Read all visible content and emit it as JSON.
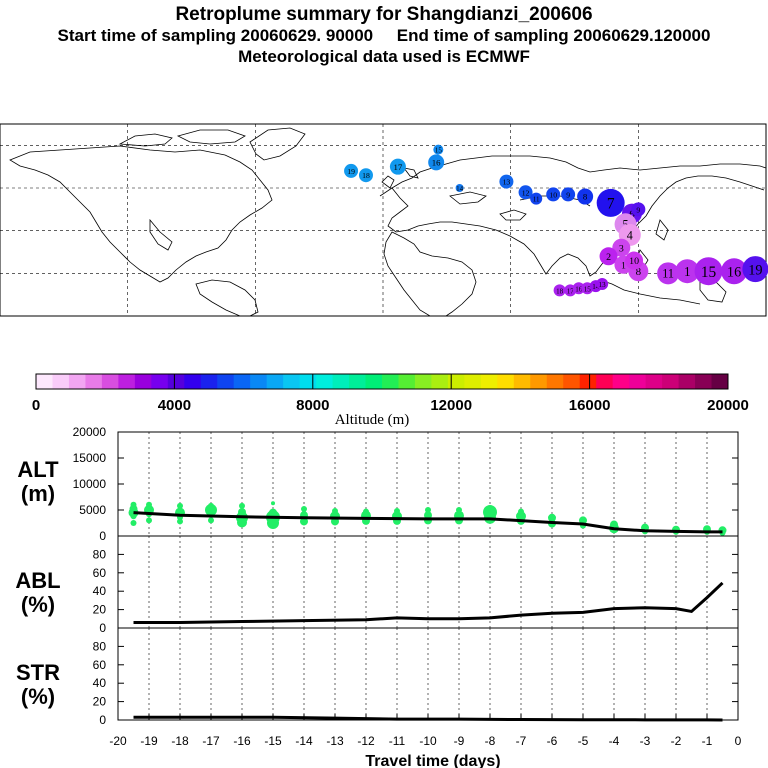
{
  "header": {
    "title": "Retroplume summary for Shangdianzi_200606",
    "subtitle": "Start time of sampling 20060629. 90000     End time of sampling 20060629.120000",
    "meteo": "Meteorological data used is ECMWF"
  },
  "colors": {
    "alt_points": "#22ee66",
    "line": "#000000"
  },
  "colorbar": {
    "title": "Altitude (m)",
    "ticks": [
      "0",
      "4000",
      "8000",
      "12000",
      "16000",
      "20000"
    ],
    "colors": [
      "#fde8fd",
      "#f9ccf9",
      "#f2a6f2",
      "#e87be8",
      "#d84ee0",
      "#bd1fe0",
      "#9900dd",
      "#7700ee",
      "#5500dd",
      "#3300ee",
      "#1a22ee",
      "#0f44f0",
      "#0a66f5",
      "#0a88f5",
      "#0aa8f5",
      "#0ac6f2",
      "#00ddee",
      "#00eedd",
      "#00eebb",
      "#00ee99",
      "#00ee77",
      "#22ee55",
      "#55ee33",
      "#88ee22",
      "#aaee11",
      "#ccee00",
      "#ddee00",
      "#eeee00",
      "#ffdd00",
      "#ffbb00",
      "#ff9900",
      "#ff7700",
      "#ff5500",
      "#ff2200",
      "#ff0055",
      "#ff0088",
      "#ee0099",
      "#dd0088",
      "#cc0077",
      "#aa0066",
      "#880055",
      "#660044"
    ]
  },
  "map": {
    "points": [
      {
        "label": "19",
        "lon": -15,
        "lat": 58,
        "r": 7,
        "color": "#1199ee"
      },
      {
        "label": "18",
        "lon": -8,
        "lat": 56,
        "r": 7,
        "color": "#1199ee"
      },
      {
        "label": "17",
        "lon": 7,
        "lat": 60,
        "r": 8,
        "color": "#1199ee"
      },
      {
        "label": "16",
        "lon": 25,
        "lat": 62,
        "r": 8,
        "color": "#1188ee"
      },
      {
        "label": "15",
        "lon": 26,
        "lat": 68,
        "r": 5,
        "color": "#1188ee"
      },
      {
        "label": "14",
        "lon": 36,
        "lat": 50,
        "r": 4,
        "color": "#1177ee"
      },
      {
        "label": "13",
        "lon": 58,
        "lat": 53,
        "r": 7,
        "color": "#1166ee"
      },
      {
        "label": "12",
        "lon": 67,
        "lat": 48,
        "r": 7,
        "color": "#1155ee"
      },
      {
        "label": "11",
        "lon": 72,
        "lat": 45,
        "r": 6,
        "color": "#1144ee"
      },
      {
        "label": "10",
        "lon": 80,
        "lat": 47,
        "r": 7,
        "color": "#1144ee"
      },
      {
        "label": "9",
        "lon": 87,
        "lat": 47,
        "r": 7,
        "color": "#1144ee"
      },
      {
        "label": "8",
        "lon": 95,
        "lat": 46,
        "r": 8,
        "color": "#1133ee"
      },
      {
        "label": "7",
        "lon": 107,
        "lat": 43,
        "r": 14,
        "color": "#2211ee"
      },
      {
        "label": "6",
        "lon": 117,
        "lat": 38,
        "r": 10,
        "color": "#6611ee"
      },
      {
        "label": "5",
        "lon": 114,
        "lat": 33,
        "r": 11,
        "color": "#dd88ee"
      },
      {
        "label": "4",
        "lon": 116,
        "lat": 28,
        "r": 11,
        "color": "#ee99ee"
      },
      {
        "label": "3",
        "lon": 112,
        "lat": 22,
        "r": 9,
        "color": "#cc44ee"
      },
      {
        "label": "2",
        "lon": 106,
        "lat": 18,
        "r": 9,
        "color": "#bb22ee"
      },
      {
        "label": "1",
        "lon": 113,
        "lat": 14,
        "r": 9,
        "color": "#cc44ee"
      },
      {
        "label": "8",
        "lon": 120,
        "lat": 11,
        "r": 10,
        "color": "#cc44ee"
      },
      {
        "label": "10",
        "lon": 118,
        "lat": 16,
        "r": 9,
        "color": "#cc33ee"
      },
      {
        "label": "11",
        "lon": 134,
        "lat": 10,
        "r": 11,
        "color": "#bb33ee"
      },
      {
        "label": "1",
        "lon": 143,
        "lat": 11,
        "r": 12,
        "color": "#bb33ee"
      },
      {
        "label": "15",
        "lon": 153,
        "lat": 11,
        "r": 14,
        "color": "#aa22ee"
      },
      {
        "label": "16",
        "lon": 165,
        "lat": 11,
        "r": 13,
        "color": "#aa22ee"
      },
      {
        "label": "19",
        "lon": 175,
        "lat": 12,
        "r": 13,
        "color": "#5511ee"
      },
      {
        "label": "18",
        "lon": 83,
        "lat": 2,
        "r": 6,
        "color": "#aa22ee"
      },
      {
        "label": "17",
        "lon": 88,
        "lat": 2,
        "r": 6,
        "color": "#aa22ee"
      },
      {
        "label": "16",
        "lon": 92,
        "lat": 3,
        "r": 6,
        "color": "#aa22ee"
      },
      {
        "label": "15",
        "lon": 96,
        "lat": 3,
        "r": 6,
        "color": "#aa22ee"
      },
      {
        "label": "14",
        "lon": 100,
        "lat": 4,
        "r": 6,
        "color": "#9911ee"
      },
      {
        "label": "13",
        "lon": 103,
        "lat": 5,
        "r": 6,
        "color": "#9911ee"
      },
      {
        "label": "9",
        "lon": 120,
        "lat": 40,
        "r": 7,
        "color": "#5511ee"
      }
    ]
  },
  "chart_data": [
    {
      "type": "scatter",
      "title": "ALT (m)",
      "panel_label_1": "ALT",
      "panel_label_2": "(m)",
      "xlabel": "Travel time (days)",
      "xlim": [
        -20,
        0
      ],
      "ylim": [
        0,
        20000
      ],
      "yticks": [
        "0",
        "5000",
        "10000",
        "15000",
        "20000"
      ],
      "points_x": [
        -19.5,
        -19.5,
        -19.5,
        -19.5,
        -19.5,
        -19,
        -19,
        -19,
        -19,
        -18,
        -18,
        -18,
        -18,
        -17,
        -17,
        -17,
        -17,
        -16,
        -16,
        -16,
        -16,
        -15,
        -15,
        -15,
        -15,
        -14,
        -14,
        -14,
        -13,
        -13,
        -13,
        -12,
        -12,
        -12,
        -11,
        -11,
        -11,
        -10,
        -10,
        -10,
        -9,
        -9,
        -9,
        -8,
        -8,
        -8,
        -7,
        -7,
        -7,
        -6,
        -6,
        -5,
        -5,
        -4,
        -4,
        -3,
        -3,
        -2,
        -2,
        -1,
        -1,
        -0.5,
        -0.5
      ],
      "points_y": [
        2500,
        3800,
        4500,
        5200,
        6000,
        3000,
        4200,
        5000,
        6000,
        2800,
        3600,
        4500,
        5800,
        3000,
        4000,
        5000,
        5800,
        2600,
        3500,
        4600,
        5800,
        2500,
        3600,
        4500,
        6300,
        2800,
        4000,
        5200,
        2800,
        3800,
        4800,
        2900,
        3900,
        4700,
        2900,
        3800,
        4800,
        3000,
        4000,
        5000,
        3000,
        3900,
        5000,
        3500,
        4600,
        5200,
        2900,
        3800,
        4700,
        2400,
        3500,
        2000,
        3000,
        1500,
        2200,
        900,
        1600,
        800,
        1200,
        800,
        1300,
        600,
        1100
      ],
      "points_r": [
        3,
        3,
        5,
        4,
        3,
        3,
        3,
        5,
        3,
        3,
        3,
        5,
        3,
        3,
        3,
        6,
        3,
        5,
        6,
        4,
        3,
        6,
        7,
        4,
        2,
        4,
        4,
        3,
        4,
        5,
        3,
        4,
        5,
        3,
        4,
        5,
        3,
        4,
        4,
        3,
        4,
        5,
        3,
        6,
        7,
        4,
        4,
        5,
        3,
        4,
        4,
        3,
        4,
        5,
        4,
        3,
        4,
        3,
        4,
        3,
        4,
        3,
        4
      ],
      "line_x": [
        -19.5,
        -18,
        -16,
        -14,
        -12,
        -10,
        -8,
        -6,
        -5,
        -4,
        -3,
        -2,
        -1,
        -0.5
      ],
      "line_y": [
        4500,
        4000,
        3700,
        3500,
        3400,
        3300,
        3300,
        2600,
        2300,
        1400,
        1000,
        900,
        800,
        800
      ]
    },
    {
      "type": "line",
      "title": "ABL (%)",
      "panel_label_1": "ABL",
      "panel_label_2": "(%)",
      "xlim": [
        -20,
        0
      ],
      "ylim": [
        0,
        100
      ],
      "yticks": [
        "0",
        "20",
        "40",
        "60",
        "80"
      ],
      "x": [
        -19.5,
        -18,
        -16,
        -14,
        -12,
        -11,
        -10,
        -9,
        -8,
        -7,
        -6,
        -5,
        -4,
        -3,
        -2,
        -1.5,
        -1,
        -0.5
      ],
      "y": [
        6,
        6,
        7,
        8,
        9,
        11,
        10,
        10,
        11,
        14,
        16,
        17,
        21,
        22,
        21,
        18,
        33,
        49
      ]
    },
    {
      "type": "line",
      "title": "STR (%)",
      "panel_label_1": "STR",
      "panel_label_2": "(%)",
      "xlim": [
        -20,
        0
      ],
      "ylim": [
        0,
        100
      ],
      "yticks": [
        "0",
        "20",
        "40",
        "60",
        "80"
      ],
      "xticks": [
        "-20",
        "-19",
        "-18",
        "-17",
        "-16",
        "-15",
        "-14",
        "-13",
        "-12",
        "-11",
        "-10",
        "-9",
        "-8",
        "-7",
        "-6",
        "-5",
        "-4",
        "-3",
        "-2",
        "-1",
        "0"
      ],
      "x": [
        -19.5,
        -15,
        -13,
        -11,
        -9,
        -7,
        -5,
        -3,
        -1,
        -0.5
      ],
      "y": [
        3,
        3,
        2,
        1,
        1,
        0.5,
        0.3,
        0.2,
        0.1,
        0
      ]
    }
  ]
}
